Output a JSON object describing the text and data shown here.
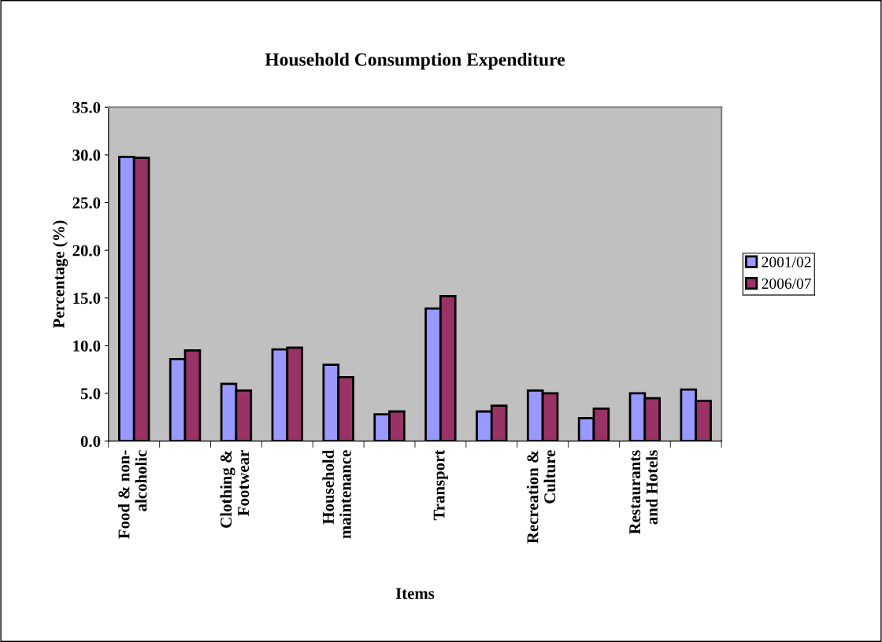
{
  "chart_data": {
    "type": "bar",
    "title": "Household Consumption Expenditure",
    "xlabel": "Items",
    "ylabel": "Percentage (%)",
    "categories": [
      "Food & non-\nalcoholic",
      null,
      "Clothing &\nFootwear",
      null,
      "Household\nmaintenance",
      null,
      "Transport",
      null,
      "Recreation &\nCulture",
      null,
      "Restaurants\nand Hotels",
      null
    ],
    "series": [
      {
        "name": "2001/02",
        "color": "#9999ff",
        "values": [
          29.8,
          8.6,
          6.0,
          9.6,
          8.0,
          2.8,
          13.9,
          3.1,
          5.3,
          2.4,
          5.0,
          5.4
        ]
      },
      {
        "name": "2006/07",
        "color": "#993366",
        "values": [
          29.7,
          9.5,
          5.3,
          9.8,
          6.7,
          3.1,
          15.2,
          3.7,
          5.0,
          3.4,
          4.5,
          4.2
        ]
      }
    ],
    "ylim": [
      0,
      35
    ],
    "yticks": [
      {
        "value": 0,
        "label": "0.0"
      },
      {
        "value": 5,
        "label": "5.0"
      },
      {
        "value": 10,
        "label": "10.0"
      },
      {
        "value": 15,
        "label": "15.0"
      },
      {
        "value": 20,
        "label": "20.0"
      },
      {
        "value": 25,
        "label": "25.0"
      },
      {
        "value": 30,
        "label": "30.0"
      },
      {
        "value": 35,
        "label": "35.0"
      }
    ],
    "grid": false,
    "legend": "right"
  }
}
